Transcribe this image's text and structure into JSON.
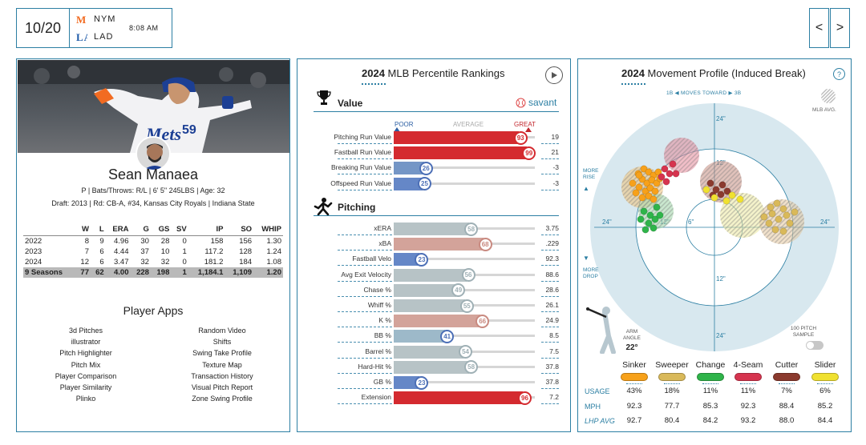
{
  "header": {
    "game_number": "10/20",
    "away_team": "NYM",
    "home_team": "LAD",
    "time": "8:08 AM",
    "prev_label": "<",
    "next_label": ">"
  },
  "player": {
    "name": "Sean Manaea",
    "details": "P | Bats/Throws: R/L | 6' 5\" 245LBS | Age: 32",
    "draft": "Draft: 2013 | Rd: CB-A, #34, Kansas City Royals | Indiana State",
    "jersey_number": "59"
  },
  "stats": {
    "headers": [
      "",
      "W",
      "L",
      "ERA",
      "G",
      "GS",
      "SV",
      "IP",
      "SO",
      "WHIP"
    ],
    "rows": [
      [
        "2022",
        "8",
        "9",
        "4.96",
        "30",
        "28",
        "0",
        "158",
        "156",
        "1.30"
      ],
      [
        "2023",
        "7",
        "6",
        "4.44",
        "37",
        "10",
        "1",
        "117.2",
        "128",
        "1.24"
      ],
      [
        "2024",
        "12",
        "6",
        "3.47",
        "32",
        "32",
        "0",
        "181.2",
        "184",
        "1.08"
      ]
    ],
    "total": [
      "9 Seasons",
      "77",
      "62",
      "4.00",
      "228",
      "198",
      "1",
      "1,184.1",
      "1,109",
      "1.20"
    ]
  },
  "apps": {
    "title": "Player Apps",
    "left": [
      "3d Pitches",
      "illustrator",
      "Pitch Highlighter",
      "Pitch Mix",
      "Player Comparison",
      "Player Similarity",
      "Plinko"
    ],
    "right": [
      "Random Video",
      "Shifts",
      "Swing Take Profile",
      "Texture Map",
      "Transaction History",
      "Visual Pitch Report",
      "Zone Swing Profile"
    ]
  },
  "percentile": {
    "year": "2024",
    "title": "MLB Percentile Rankings",
    "savant": "savant",
    "scale": {
      "poor": "POOR",
      "average": "AVERAGE",
      "great": "GREAT"
    },
    "value_section": "Value",
    "pitching_section": "Pitching",
    "value_rows": [
      {
        "label": "Pitching Run Value",
        "pct": 93,
        "value": "19"
      },
      {
        "label": "Fastball Run Value",
        "pct": 99,
        "value": "21"
      },
      {
        "label": "Breaking Run Value",
        "pct": 26,
        "value": "-3"
      },
      {
        "label": "Offspeed Run Value",
        "pct": 25,
        "value": "-3"
      }
    ],
    "pitching_rows": [
      {
        "label": "xERA",
        "pct": 58,
        "value": "3.75"
      },
      {
        "label": "xBA",
        "pct": 68,
        "value": ".229"
      },
      {
        "label": "Fastball Velo",
        "pct": 23,
        "value": "92.3"
      },
      {
        "label": "Avg Exit Velocity",
        "pct": 56,
        "value": "88.6"
      },
      {
        "label": "Chase %",
        "pct": 49,
        "value": "28.6"
      },
      {
        "label": "Whiff %",
        "pct": 55,
        "value": "26.1"
      },
      {
        "label": "K %",
        "pct": 66,
        "value": "24.9"
      },
      {
        "label": "BB %",
        "pct": 41,
        "value": "8.5"
      },
      {
        "label": "Barrel %",
        "pct": 54,
        "value": "7.5"
      },
      {
        "label": "Hard-Hit %",
        "pct": 58,
        "value": "37.8"
      },
      {
        "label": "GB %",
        "pct": 23,
        "value": "37.8"
      },
      {
        "label": "Extension",
        "pct": 96,
        "value": "7.2"
      }
    ]
  },
  "movement": {
    "year": "2024",
    "title": "Movement Profile (Induced Break)",
    "help": "?",
    "direction": "1B ◀  MOVES TOWARD  ▶ 3B",
    "mlb_avg": "MLB AVG.",
    "more_rise": "MORE RISE",
    "more_drop": "MORE DROP",
    "rings": {
      "outer": "24\"",
      "inner": "12\"",
      "small": "6\""
    },
    "arm_angle_label": "ARM ANGLE",
    "arm_angle": "22°",
    "sample_label": "100 PITCH SAMPLE",
    "pitches": [
      {
        "name": "Sinker",
        "color": "#f7a11a",
        "usage": "43%",
        "mph": "92.3",
        "lhp": "92.7"
      },
      {
        "name": "Sweeper",
        "color": "#d9b95a",
        "usage": "18%",
        "mph": "77.7",
        "lhp": "80.4"
      },
      {
        "name": "Change",
        "color": "#2fb44a",
        "usage": "11%",
        "mph": "85.3",
        "lhp": "84.2"
      },
      {
        "name": "4-Seam",
        "color": "#d6344f",
        "usage": "11%",
        "mph": "92.3",
        "lhp": "93.2"
      },
      {
        "name": "Cutter",
        "color": "#8b3a2e",
        "usage": "7%",
        "mph": "88.4",
        "lhp": "88.0"
      },
      {
        "name": "Slider",
        "color": "#f0e130",
        "usage": "6%",
        "mph": "85.2",
        "lhp": "84.4"
      }
    ],
    "row_labels": {
      "usage": "USAGE",
      "mph": "MPH",
      "lhp": "LHP AVG"
    }
  }
}
